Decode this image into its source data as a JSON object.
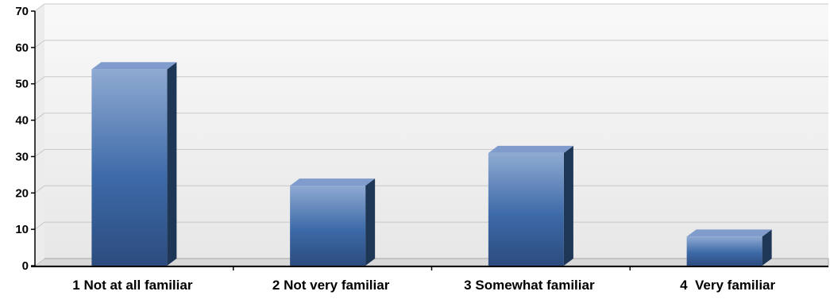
{
  "chart_data": {
    "type": "bar",
    "categories": [
      "1 Not at all familiar",
      "2 Not very familiar",
      "3 Somewhat familiar",
      "4  Very familiar"
    ],
    "values": [
      54,
      22,
      31,
      8
    ],
    "ylim": [
      0,
      70
    ],
    "yticks": [
      0,
      10,
      20,
      30,
      40,
      50,
      60,
      70
    ],
    "grid": true,
    "legend": "none",
    "bar_style": "3d",
    "colors": {
      "bar_top": "#8faad2",
      "bar_mid": "#3d6aa8",
      "bar_bottom": "#2c4c7e",
      "bar_side": "#1f3757",
      "bar_cap": "#7f9ccc",
      "grid": "#c8c8c8",
      "plot_bg_top": "#f9f9f9",
      "plot_bg_bottom": "#e7e7e7",
      "floor": "#d9d9d9",
      "axis": "#000000"
    }
  }
}
